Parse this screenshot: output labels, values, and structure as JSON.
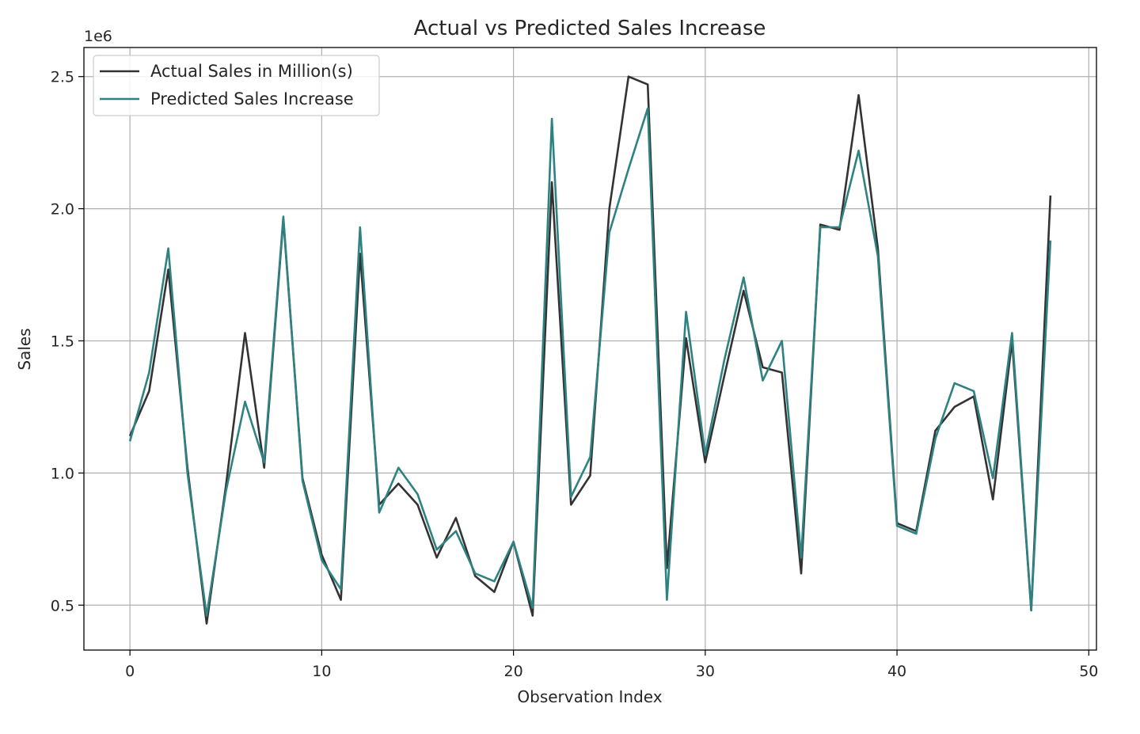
{
  "chart_data": {
    "type": "line",
    "title": "Actual vs Predicted Sales Increase",
    "xlabel": "Observation Index",
    "ylabel": "Sales",
    "y_offset_label": "1e6",
    "xlim": [
      -2.4,
      50.4
    ],
    "ylim": [
      0.33,
      2.61
    ],
    "x_ticks": [
      0,
      10,
      20,
      30,
      40,
      50
    ],
    "x_tick_labels": [
      "0",
      "10",
      "20",
      "30",
      "40",
      "50"
    ],
    "y_ticks": [
      0.5,
      1.0,
      1.5,
      2.0,
      2.5
    ],
    "y_tick_labels": [
      "0.5",
      "1.0",
      "1.5",
      "2.0",
      "2.5"
    ],
    "grid": true,
    "legend_position": "upper-left",
    "x": [
      0,
      1,
      2,
      3,
      4,
      5,
      6,
      7,
      8,
      9,
      10,
      11,
      12,
      13,
      14,
      15,
      16,
      17,
      18,
      19,
      20,
      21,
      22,
      23,
      24,
      25,
      26,
      27,
      28,
      29,
      30,
      31,
      32,
      33,
      34,
      35,
      36,
      37,
      38,
      39,
      40,
      41,
      42,
      43,
      44,
      45,
      46,
      47,
      48
    ],
    "series": [
      {
        "name": "Actual Sales in Million(s)",
        "color": "#333333",
        "values": [
          1.14,
          1.31,
          1.77,
          1.02,
          0.43,
          0.95,
          1.53,
          1.02,
          1.96,
          0.98,
          0.69,
          0.52,
          1.83,
          0.88,
          0.96,
          0.88,
          0.68,
          0.83,
          0.61,
          0.55,
          0.74,
          0.46,
          2.1,
          0.88,
          0.99,
          2.0,
          2.5,
          2.47,
          0.64,
          1.51,
          1.04,
          1.37,
          1.69,
          1.4,
          1.38,
          0.62,
          1.94,
          1.92,
          2.43,
          1.85,
          0.81,
          0.78,
          1.16,
          1.25,
          1.29,
          0.9,
          1.5,
          0.48,
          2.05
        ]
      },
      {
        "name": "Predicted Sales Increase",
        "color": "#2e8282",
        "values": [
          1.12,
          1.38,
          1.85,
          1.0,
          0.46,
          0.93,
          1.27,
          1.04,
          1.97,
          0.97,
          0.67,
          0.56,
          1.93,
          0.85,
          1.02,
          0.92,
          0.71,
          0.78,
          0.62,
          0.59,
          0.74,
          0.49,
          2.34,
          0.91,
          1.06,
          1.91,
          2.15,
          2.38,
          0.52,
          1.61,
          1.07,
          1.43,
          1.74,
          1.35,
          1.5,
          0.68,
          1.93,
          1.93,
          2.22,
          1.82,
          0.8,
          0.77,
          1.13,
          1.34,
          1.31,
          0.98,
          1.53,
          0.48,
          1.88
        ]
      }
    ]
  }
}
